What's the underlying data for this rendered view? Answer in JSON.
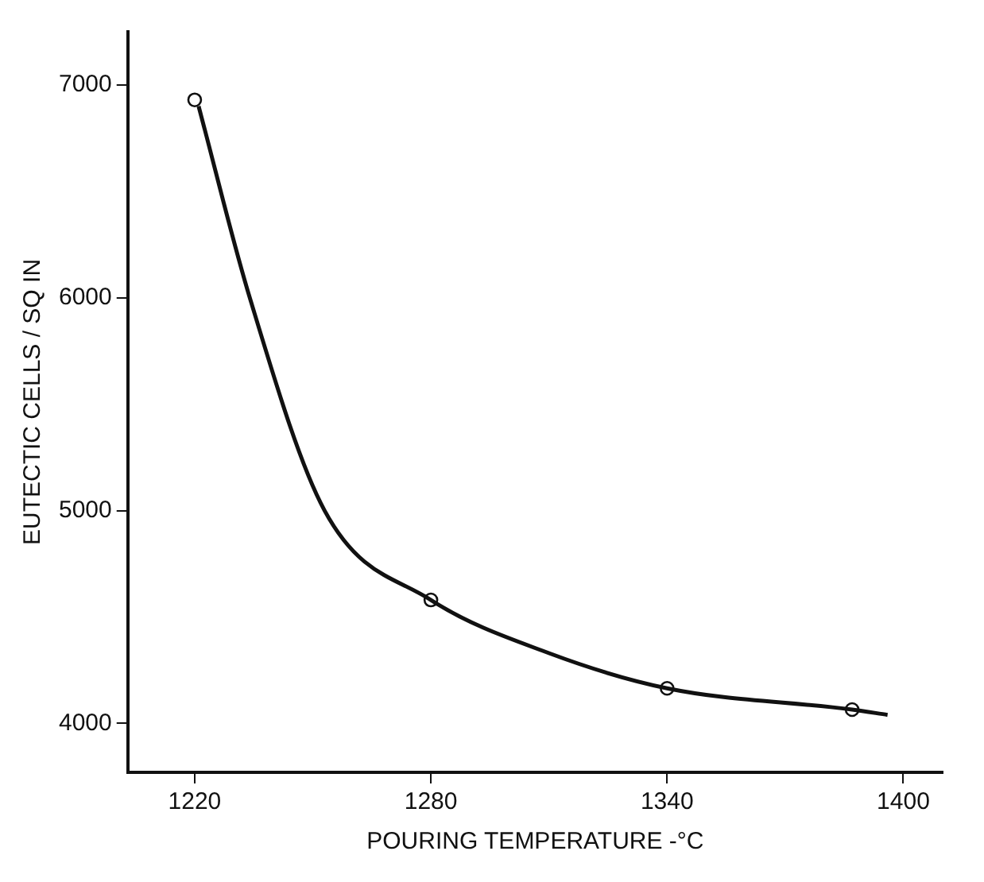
{
  "chart_data": {
    "type": "scatter",
    "xlabel": "POURING TEMPERATURE -°C",
    "ylabel": "EUTECTIC CELLS / SQ IN",
    "xlim": [
      1203,
      1410
    ],
    "ylim": [
      3770,
      7250
    ],
    "xticks": [
      1220,
      1280,
      1340,
      1400
    ],
    "yticks": [
      4000,
      5000,
      6000,
      7000
    ],
    "grid": false,
    "legend": false,
    "series": [
      {
        "type": "line",
        "color": "#111111",
        "marker": "none",
        "line_style": "solid",
        "x": [
          1221,
          1234,
          1253,
          1280,
          1310,
          1340,
          1387,
          1396
        ],
        "values": [
          6900,
          6000,
          5000,
          4580,
          4330,
          4165,
          4065,
          4040
        ]
      },
      {
        "type": "scatter",
        "color": "#111111",
        "marker": "circle",
        "x": [
          1220,
          1280,
          1340,
          1387
        ],
        "values": [
          6930,
          4580,
          4165,
          4065
        ]
      }
    ]
  }
}
